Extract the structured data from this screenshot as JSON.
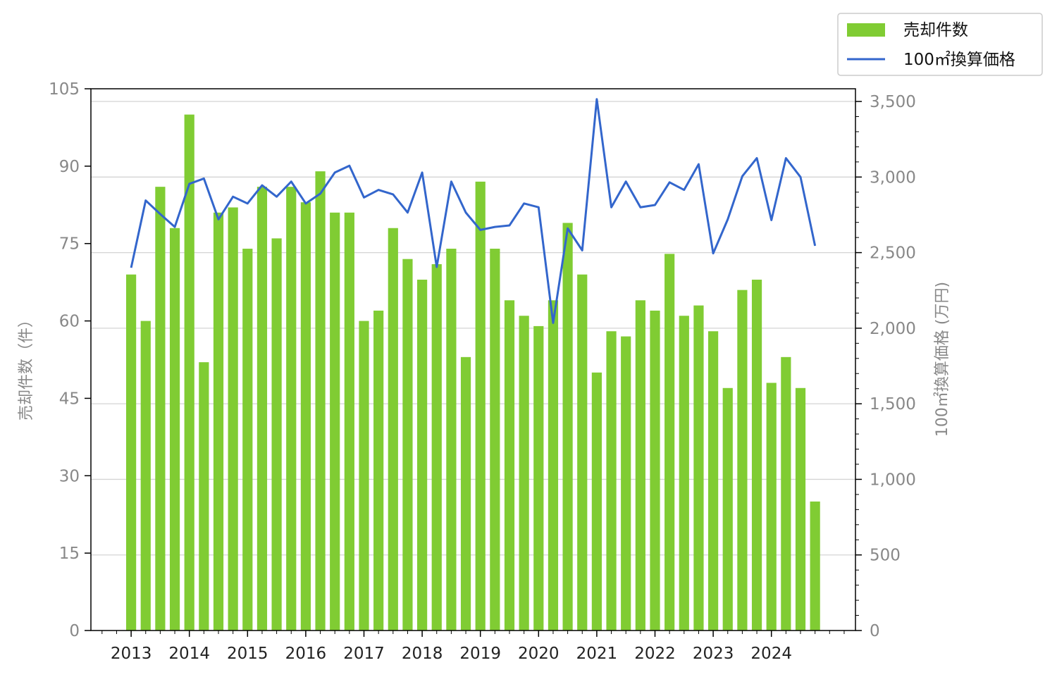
{
  "chart_data": {
    "type": "bar+line",
    "legend": {
      "placement": "top-right-outside",
      "entries": [
        {
          "label": "売却件数",
          "kind": "bar",
          "color": "#80cc33"
        },
        {
          "label": "100㎡換算価格",
          "kind": "line",
          "color": "#3366cc"
        }
      ]
    },
    "left_axis": {
      "label": "売却件数（件）",
      "range": [
        0,
        105
      ],
      "ticks": [
        "0",
        "15",
        "30",
        "45",
        "60",
        "75",
        "90",
        "105"
      ],
      "tick_values": [
        0,
        15,
        30,
        45,
        60,
        75,
        90,
        105
      ]
    },
    "right_axis": {
      "label": "100㎡換算価格 (万円)",
      "range": [
        0,
        3584
      ],
      "ticks": [
        "0",
        "500",
        "1,000",
        "1,500",
        "2,000",
        "2,500",
        "3,000",
        "3,500"
      ],
      "tick_values": [
        0,
        500,
        1000,
        1500,
        2000,
        2500,
        3000,
        3500
      ]
    },
    "x_axis": {
      "years": [
        "2013",
        "2014",
        "2015",
        "2016",
        "2017",
        "2018",
        "2019",
        "2020",
        "2021",
        "2022",
        "2023",
        "2024"
      ],
      "quarters_per_year": 4
    },
    "grid": true,
    "series": [
      {
        "name": "売却件数",
        "type": "bar",
        "axis": "left",
        "color": "#80cc33",
        "values": [
          69,
          60,
          86,
          78,
          100,
          52,
          81,
          82,
          74,
          86,
          76,
          86,
          83,
          89,
          81,
          81,
          60,
          62,
          78,
          72,
          68,
          71,
          74,
          53,
          87,
          74,
          64,
          61,
          59,
          64,
          79,
          69,
          50,
          58,
          57,
          64,
          62,
          73,
          61,
          63,
          58,
          47,
          66,
          68,
          48,
          53,
          47,
          25
        ]
      },
      {
        "name": "100㎡換算価格",
        "type": "line",
        "axis": "right",
        "color": "#3366cc",
        "values": [
          2400,
          2845,
          2755,
          2670,
          2955,
          2990,
          2720,
          2870,
          2825,
          2945,
          2870,
          2970,
          2825,
          2890,
          3030,
          3075,
          2865,
          2915,
          2885,
          2765,
          3030,
          2405,
          2970,
          2765,
          2650,
          2670,
          2680,
          2825,
          2800,
          2035,
          2660,
          2515,
          3515,
          2800,
          2970,
          2800,
          2815,
          2965,
          2915,
          3085,
          2495,
          2720,
          3005,
          3125,
          2715,
          3125,
          3000,
          2545
        ]
      }
    ]
  }
}
